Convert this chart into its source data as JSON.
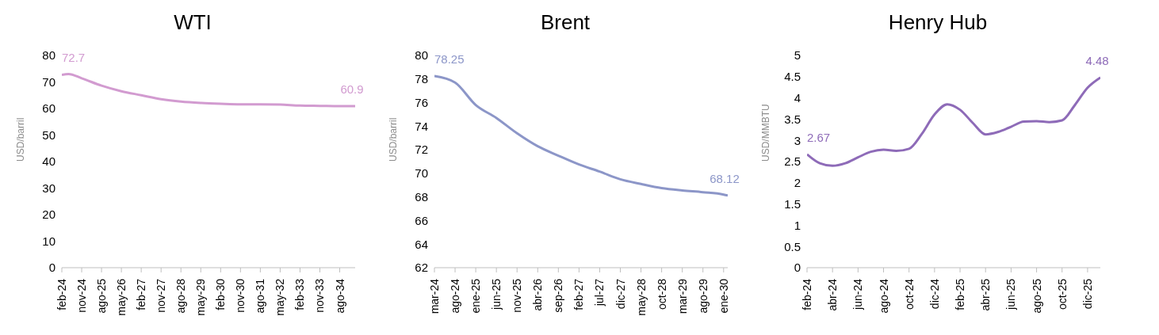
{
  "chart_data": [
    {
      "type": "line",
      "title": "WTI",
      "ylabel": "USD/barril",
      "x": [
        "2024-02",
        "2024-05",
        "2024-11",
        "2025-08",
        "2026-05",
        "2027-02",
        "2027-11",
        "2028-08",
        "2029-05",
        "2030-02",
        "2030-11",
        "2031-08",
        "2032-05",
        "2033-02",
        "2033-11",
        "2034-08",
        "2035-03"
      ],
      "series": [
        {
          "color": "#d29bd0",
          "values": [
            72.7,
            73.0,
            71.4,
            68.6,
            66.5,
            65.0,
            63.5,
            62.6,
            62.1,
            61.8,
            61.6,
            61.6,
            61.5,
            61.1,
            61.0,
            60.9,
            60.9
          ],
          "value_labels": [
            "72.7",
            null,
            null,
            null,
            null,
            null,
            null,
            null,
            null,
            null,
            null,
            null,
            null,
            null,
            null,
            null,
            "60.9"
          ]
        }
      ],
      "xlim": [
        "2024-02",
        "2035-03"
      ],
      "xticks": [
        {
          "value": "2024-02",
          "label": "feb-24"
        },
        {
          "value": "2024-11",
          "label": "nov-24"
        },
        {
          "value": "2025-08",
          "label": "ago-25"
        },
        {
          "value": "2026-05",
          "label": "may-26"
        },
        {
          "value": "2027-02",
          "label": "feb-27"
        },
        {
          "value": "2027-11",
          "label": "nov-27"
        },
        {
          "value": "2028-08",
          "label": "ago-28"
        },
        {
          "value": "2029-05",
          "label": "may-29"
        },
        {
          "value": "2030-02",
          "label": "feb-30"
        },
        {
          "value": "2030-11",
          "label": "nov-30"
        },
        {
          "value": "2031-08",
          "label": "ago-31"
        },
        {
          "value": "2032-05",
          "label": "may-32"
        },
        {
          "value": "2033-02",
          "label": "feb-33"
        },
        {
          "value": "2033-11",
          "label": "nov-33"
        },
        {
          "value": "2034-08",
          "label": "ago-34"
        }
      ],
      "ylim": [
        0,
        80
      ],
      "yticks": [
        0,
        10,
        20,
        30,
        40,
        50,
        60,
        70,
        80
      ],
      "grid": false,
      "legend": false
    },
    {
      "type": "line",
      "title": "Brent",
      "ylabel": "USD/barril",
      "x": [
        "2024-03",
        "2024-08",
        "2025-01",
        "2025-06",
        "2025-11",
        "2026-04",
        "2026-09",
        "2027-02",
        "2027-07",
        "2027-12",
        "2028-05",
        "2028-10",
        "2029-03",
        "2029-08",
        "2030-01",
        "2030-02"
      ],
      "series": [
        {
          "color": "#8c96c8",
          "values": [
            78.25,
            77.7,
            75.8,
            74.7,
            73.4,
            72.3,
            71.5,
            70.75,
            70.15,
            69.5,
            69.1,
            68.75,
            68.55,
            68.4,
            68.2,
            68.12
          ],
          "value_labels": [
            "78.25",
            null,
            null,
            null,
            null,
            null,
            null,
            null,
            null,
            null,
            null,
            null,
            null,
            null,
            null,
            "68.12"
          ]
        }
      ],
      "xlim": [
        "2024-03",
        "2030-02"
      ],
      "xticks": [
        {
          "value": "2024-03",
          "label": "mar-24"
        },
        {
          "value": "2024-08",
          "label": "ago-24"
        },
        {
          "value": "2025-01",
          "label": "ene-25"
        },
        {
          "value": "2025-06",
          "label": "jun-25"
        },
        {
          "value": "2025-11",
          "label": "nov-25"
        },
        {
          "value": "2026-04",
          "label": "abr-26"
        },
        {
          "value": "2026-09",
          "label": "sep-26"
        },
        {
          "value": "2027-02",
          "label": "feb-27"
        },
        {
          "value": "2027-07",
          "label": "jul-27"
        },
        {
          "value": "2027-12",
          "label": "dic-27"
        },
        {
          "value": "2028-05",
          "label": "may-28"
        },
        {
          "value": "2028-10",
          "label": "oct-28"
        },
        {
          "value": "2029-03",
          "label": "mar-29"
        },
        {
          "value": "2029-08",
          "label": "ago-29"
        },
        {
          "value": "2030-01",
          "label": "ene-30"
        }
      ],
      "ylim": [
        62,
        80
      ],
      "yticks": [
        62,
        64,
        66,
        68,
        70,
        72,
        74,
        76,
        78,
        80
      ],
      "grid": false,
      "legend": false
    },
    {
      "type": "line",
      "title": "Henry Hub",
      "ylabel": "USD/MMBTU",
      "x": [
        "2024-02",
        "2024-03",
        "2024-04",
        "2024-05",
        "2024-06",
        "2024-07",
        "2024-08",
        "2024-09",
        "2024-10",
        "2024-11",
        "2024-12",
        "2025-01",
        "2025-02",
        "2025-03",
        "2025-04",
        "2025-05",
        "2025-06",
        "2025-07",
        "2025-08",
        "2025-09",
        "2025-10",
        "2025-11",
        "2025-12",
        "2026-01"
      ],
      "series": [
        {
          "color": "#8e6bb8",
          "values": [
            2.67,
            2.46,
            2.4,
            2.46,
            2.6,
            2.73,
            2.78,
            2.75,
            2.8,
            3.15,
            3.61,
            3.85,
            3.72,
            3.41,
            3.14,
            3.2,
            3.32,
            3.44,
            3.45,
            3.43,
            3.47,
            3.83,
            4.24,
            4.48
          ],
          "value_labels": [
            "2.67",
            null,
            null,
            null,
            null,
            null,
            null,
            null,
            null,
            null,
            null,
            null,
            null,
            null,
            null,
            null,
            null,
            null,
            null,
            null,
            null,
            null,
            null,
            "4.48"
          ]
        }
      ],
      "xlim": [
        "2024-02",
        "2026-01"
      ],
      "xticks": [
        {
          "value": "2024-02",
          "label": "feb-24"
        },
        {
          "value": "2024-04",
          "label": "abr-24"
        },
        {
          "value": "2024-06",
          "label": "jun-24"
        },
        {
          "value": "2024-08",
          "label": "ago-24"
        },
        {
          "value": "2024-10",
          "label": "oct-24"
        },
        {
          "value": "2024-12",
          "label": "dic-24"
        },
        {
          "value": "2025-02",
          "label": "feb-25"
        },
        {
          "value": "2025-04",
          "label": "abr-25"
        },
        {
          "value": "2025-06",
          "label": "jun-25"
        },
        {
          "value": "2025-08",
          "label": "ago-25"
        },
        {
          "value": "2025-10",
          "label": "oct-25"
        },
        {
          "value": "2025-12",
          "label": "dic-25"
        }
      ],
      "ylim": [
        0,
        5
      ],
      "yticks": [
        0,
        0.5,
        1,
        1.5,
        2,
        2.5,
        3,
        3.5,
        4,
        4.5,
        5
      ],
      "grid": false,
      "legend": false
    }
  ]
}
